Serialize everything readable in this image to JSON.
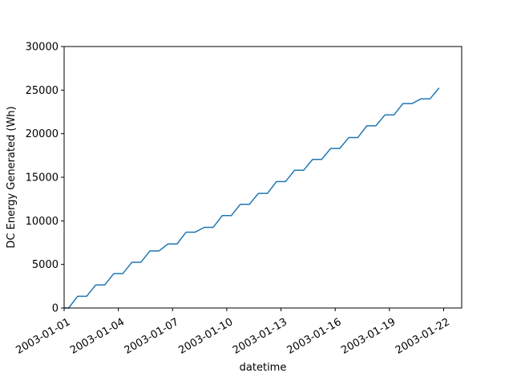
{
  "chart_data": {
    "type": "line",
    "xlabel": "datetime",
    "ylabel": "DC Energy Generated (Wh)",
    "xlim": [
      "2003-01-01",
      "2003-01-23"
    ],
    "ylim": [
      0,
      30000
    ],
    "x_ticks": [
      "2003-01-01",
      "2003-01-04",
      "2003-01-07",
      "2003-01-10",
      "2003-01-13",
      "2003-01-16",
      "2003-01-19",
      "2003-01-22"
    ],
    "y_ticks": [
      0,
      5000,
      10000,
      15000,
      20000,
      25000,
      30000
    ],
    "grid": false,
    "series": [
      {
        "color": "#1f77b4",
        "x": [
          "2003-01-01",
          "2003-01-01 06:00",
          "2003-01-01 18:00",
          "2003-01-02 06:00",
          "2003-01-02 18:00",
          "2003-01-03 06:00",
          "2003-01-03 18:00",
          "2003-01-04 06:00",
          "2003-01-04 18:00",
          "2003-01-05 06:00",
          "2003-01-05 18:00",
          "2003-01-06 06:00",
          "2003-01-06 18:00",
          "2003-01-07 06:00",
          "2003-01-07 18:00",
          "2003-01-08 06:00",
          "2003-01-08 18:00",
          "2003-01-09 06:00",
          "2003-01-09 18:00",
          "2003-01-10 06:00",
          "2003-01-10 18:00",
          "2003-01-11 06:00",
          "2003-01-11 18:00",
          "2003-01-12 06:00",
          "2003-01-12 18:00",
          "2003-01-13 06:00",
          "2003-01-13 18:00",
          "2003-01-14 06:00",
          "2003-01-14 18:00",
          "2003-01-15 06:00",
          "2003-01-15 18:00",
          "2003-01-16 06:00",
          "2003-01-16 18:00",
          "2003-01-17 06:00",
          "2003-01-17 18:00",
          "2003-01-18 06:00",
          "2003-01-18 18:00",
          "2003-01-19 06:00",
          "2003-01-19 18:00",
          "2003-01-20 06:00",
          "2003-01-20 18:00",
          "2003-01-21 06:00",
          "2003-01-21 18:00"
        ],
        "y": [
          0,
          0,
          1350,
          1350,
          2650,
          2650,
          3950,
          3950,
          5250,
          5250,
          6550,
          6550,
          7350,
          7350,
          8700,
          8700,
          9250,
          9250,
          10600,
          10600,
          11900,
          11900,
          13150,
          13150,
          14500,
          14500,
          15800,
          15800,
          17050,
          17050,
          18300,
          18300,
          19550,
          19550,
          20900,
          20900,
          22150,
          22150,
          23450,
          23450,
          24000,
          24000,
          25250
        ]
      }
    ]
  }
}
